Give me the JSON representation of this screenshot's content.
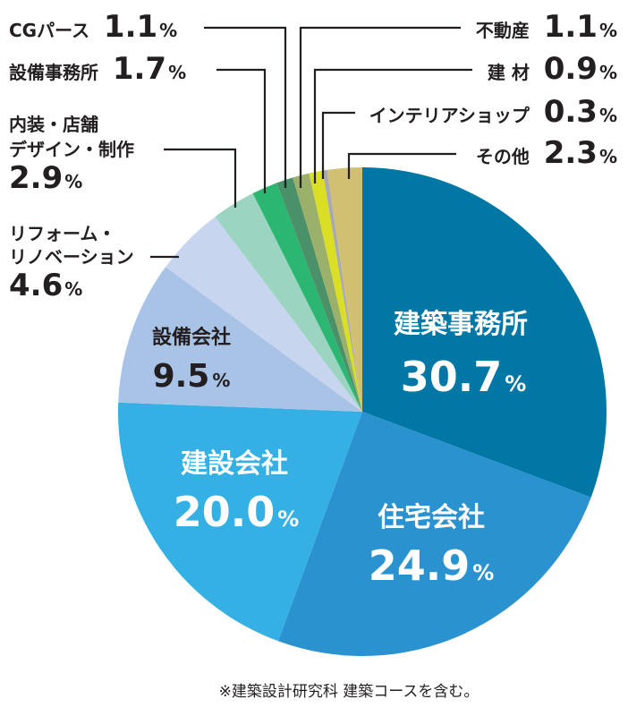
{
  "chart_data": {
    "type": "pie",
    "start": "12 o'clock, clockwise",
    "unit": "%",
    "slices": [
      {
        "label": "建築事務所",
        "value": 30.7,
        "color": "#0077a4"
      },
      {
        "label": "住宅会社",
        "value": 24.9,
        "color": "#2b92d0"
      },
      {
        "label": "建設会社",
        "value": 20.0,
        "color": "#35b0e4"
      },
      {
        "label": "設備会社",
        "value": 9.5,
        "color": "#a9c3e6"
      },
      {
        "label": "リフォーム・リノベーション",
        "label_lines": [
          "リフォーム・",
          "リノベーション"
        ],
        "value": 4.6,
        "color": "#c8d5ef"
      },
      {
        "label": "内装・店舗デザイン・制作",
        "label_lines": [
          "内装・店舗",
          "デザイン・制作"
        ],
        "value": 2.9,
        "color": "#9bd4c0"
      },
      {
        "label": "設備事務所",
        "value": 1.7,
        "color": "#2bb771"
      },
      {
        "label": "CGパース",
        "value": 1.1,
        "color": "#4a9068"
      },
      {
        "label": "不動産",
        "value": 1.1,
        "color": "#9bb06a"
      },
      {
        "label": "建 材",
        "value": 0.9,
        "color": "#dbdf23"
      },
      {
        "label": "インテリアショップ",
        "value": 0.3,
        "color": "#a8aab0"
      },
      {
        "label": "その他",
        "value": 2.3,
        "color": "#d1bf72"
      }
    ],
    "value_labels": [
      "30.7",
      "24.9",
      "20.0",
      "9.5",
      "4.6",
      "2.9",
      "1.7",
      "1.1",
      "1.1",
      "0.9",
      "0.3",
      "2.3"
    ],
    "footnote": "※建築設計研究科 建築コースを含む。"
  }
}
